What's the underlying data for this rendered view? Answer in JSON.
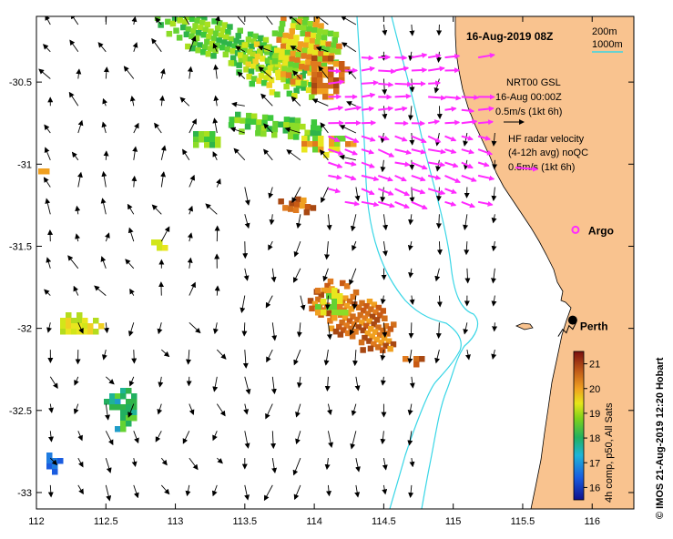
{
  "map": {
    "title": "16-Aug-2019 08Z",
    "x_ticks": [
      "112",
      "112.5",
      "113",
      "113.5",
      "114",
      "114.5",
      "115",
      "115.5",
      "116"
    ],
    "y_ticks": [
      "-30.5",
      "-31",
      "-31.5",
      "-32",
      "-32.5",
      "-33"
    ],
    "x_range": [
      112,
      116.3
    ],
    "y_range": [
      -33.1,
      -30.1
    ],
    "land_color": "#f9c38f",
    "isobath_color": "#38d6e6",
    "radar_vector_color": "#ff2bff"
  },
  "legend": {
    "depth_label_1": "200m",
    "depth_label_2": "1000m",
    "model_label": "NRT00 GSL",
    "model_time": "16-Aug 00:00Z",
    "model_scale": "0.5m/s (1kt 6h)",
    "radar_label": "HF radar velocity",
    "radar_avg": "(4-12h avg) noQC",
    "radar_scale": "0.5m/s (1kt 6h)"
  },
  "places": {
    "argo": "Argo",
    "perth": "Perth",
    "argo_location": [
      115.88,
      -31.4
    ],
    "perth_location": [
      115.86,
      -31.95
    ]
  },
  "colorbar": {
    "ticks": [
      "21",
      "20",
      "19",
      "18",
      "17",
      "16"
    ],
    "caption": "4h comp, p50, All Sats",
    "range": [
      15.5,
      21.5
    ]
  },
  "credit": "© IMOS 21-Aug-2019 12:20 Hobart"
}
